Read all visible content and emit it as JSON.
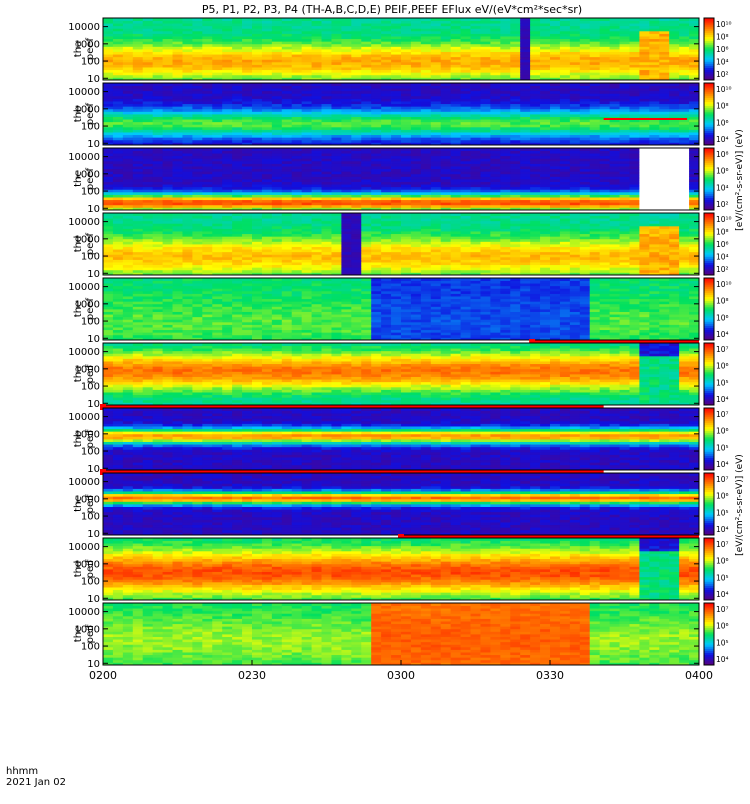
{
  "title": "P5, P1, P2, P3, P4 (TH-A,B,C,D,E) PEIF,PEEF EFlux eV/(eV*cm²*sec*sr)",
  "time_axis": {
    "label_line1": "hhmm",
    "label_line2": "2021 Jan 02",
    "ticks": [
      "0200",
      "0230",
      "0300",
      "0330",
      "0400"
    ]
  },
  "chart_data": {
    "type": "heatmap",
    "title": "P5, P1, P2, P3, P4 (TH-A,B,C,D,E) PEIF,PEEF EFlux eV/(eV*cm²*sec*sr)",
    "x_range": [
      "0200",
      "0400"
    ],
    "x_ticks": [
      "0200",
      "0230",
      "0300",
      "0330",
      "0400"
    ],
    "ylog": true,
    "y_ticks": [
      "10",
      "100",
      "1000",
      "10000"
    ],
    "colorscale": [
      "#5a0078",
      "#1010e0",
      "#00c8ff",
      "#00e060",
      "#ffff00",
      "#ff8000",
      "#ff0000"
    ],
    "panels": [
      {
        "id": "tha_peef",
        "ylabel_top": "tha",
        "ylabel_bottom": "peef",
        "cbar_ticks": [
          "10¹⁰",
          "10⁸",
          "10⁶",
          "10⁴",
          "10²"
        ],
        "base": 0.45,
        "band_center": 0.3,
        "band_width": 0.28,
        "band_peak": 0.78,
        "features": [
          {
            "type": "gap",
            "t0": 0.706,
            "t1": 0.718,
            "level": 0.1
          },
          {
            "type": "blob",
            "t0": 0.9,
            "t1": 0.95,
            "level": 0.65
          }
        ],
        "time_bars": []
      },
      {
        "id": "thb_peef",
        "ylabel_top": "thb",
        "ylabel_bottom": "peef",
        "cbar_ticks": [
          "10¹⁰",
          "10⁸",
          "10⁶",
          "10⁴"
        ],
        "base": 0.12,
        "band_center": 0.35,
        "band_width": 0.22,
        "band_peak": 0.55,
        "features": [
          {
            "type": "line",
            "t0": 0.84,
            "t1": 0.98,
            "y": 0.42
          }
        ],
        "time_bars": []
      },
      {
        "id": "thc_peef",
        "ylabel_top": "thc",
        "ylabel_bottom": "peef",
        "cbar_ticks": [
          "10⁸",
          "10⁶",
          "10⁴",
          "10²"
        ],
        "base": 0.12,
        "band_center": 0.12,
        "band_width": 0.14,
        "band_peak": 0.9,
        "features": [
          {
            "type": "blank",
            "t0": 0.904,
            "t1": 0.98
          }
        ],
        "time_bars": []
      },
      {
        "id": "thd_peef",
        "ylabel_top": "thd",
        "ylabel_bottom": "peef",
        "cbar_ticks": [
          "10¹⁰",
          "10⁸",
          "10⁶",
          "10⁴",
          "10²"
        ],
        "base": 0.45,
        "band_center": 0.3,
        "band_width": 0.3,
        "band_peak": 0.75,
        "features": [
          {
            "type": "gap",
            "t0": 0.397,
            "t1": 0.43,
            "level": 0.1
          },
          {
            "type": "blob",
            "t0": 0.9,
            "t1": 0.96,
            "level": 0.65
          }
        ],
        "time_bars": []
      },
      {
        "id": "the_peef",
        "ylabel_top": "the",
        "ylabel_bottom": "peef",
        "cbar_ticks": [
          "10¹⁰",
          "10⁸",
          "10⁶",
          "10⁴"
        ],
        "base": 0.48,
        "band_center": 0.3,
        "band_width": 0.4,
        "band_peak": 0.55,
        "features": [
          {
            "type": "shift",
            "t0": 0.455,
            "t1": 0.82,
            "level": 0.2
          }
        ],
        "time_bars": [
          {
            "t0": 0.72,
            "t1": 1.0
          }
        ]
      },
      {
        "id": "tha_peif",
        "ylabel_top": "tha",
        "ylabel_bottom": "peif",
        "cbar_ticks": [
          "10⁷",
          "10⁶",
          "10⁵",
          "10⁴"
        ],
        "base": 0.42,
        "band_center": 0.55,
        "band_width": 0.3,
        "band_peak": 0.85,
        "features": [
          {
            "type": "blob",
            "t0": 0.9,
            "t1": 0.96,
            "level": 0.35
          }
        ],
        "time_bars": [
          {
            "t0": 0.0,
            "t1": 0.84
          }
        ]
      },
      {
        "id": "thb_peif",
        "ylabel_top": "thb",
        "ylabel_bottom": "peif",
        "cbar_ticks": [
          "10⁷",
          "10⁶",
          "10⁵",
          "10⁴"
        ],
        "base": 0.12,
        "band_center": 0.55,
        "band_width": 0.12,
        "band_peak": 0.8,
        "features": [],
        "time_bars": [
          {
            "t0": 0.0,
            "t1": 0.84
          }
        ]
      },
      {
        "id": "thc_peif",
        "ylabel_top": "thc",
        "ylabel_bottom": "peif",
        "cbar_ticks": [
          "10⁷",
          "10⁶",
          "10⁵",
          "10⁴"
        ],
        "base": 0.12,
        "band_center": 0.6,
        "band_width": 0.1,
        "band_peak": 0.85,
        "features": [],
        "time_bars": [
          {
            "t0": 0.5,
            "t1": 1.0
          }
        ]
      },
      {
        "id": "thd_peif",
        "ylabel_top": "thd",
        "ylabel_bottom": "peif",
        "cbar_ticks": [
          "10⁷",
          "10⁶",
          "10⁵",
          "10⁴"
        ],
        "base": 0.45,
        "band_center": 0.45,
        "band_width": 0.35,
        "band_peak": 0.9,
        "features": [
          {
            "type": "blob",
            "t0": 0.9,
            "t1": 0.96,
            "level": 0.35
          }
        ],
        "time_bars": []
      },
      {
        "id": "the_peif",
        "ylabel_top": "the",
        "ylabel_bottom": "peif",
        "cbar_ticks": [
          "10⁷",
          "10⁶",
          "10⁵",
          "10⁴"
        ],
        "base": 0.5,
        "band_center": 0.4,
        "band_width": 0.4,
        "band_peak": 0.6,
        "features": [
          {
            "type": "shift",
            "t0": 0.455,
            "t1": 0.82,
            "level": 0.85
          }
        ],
        "time_bars": []
      }
    ],
    "colorbar_labels": {
      "peef": "[eV/(cm²-s-sr-eV)] (eV)",
      "peif": "[eV/(cm²-s-sr-eV)] (eV)"
    }
  }
}
